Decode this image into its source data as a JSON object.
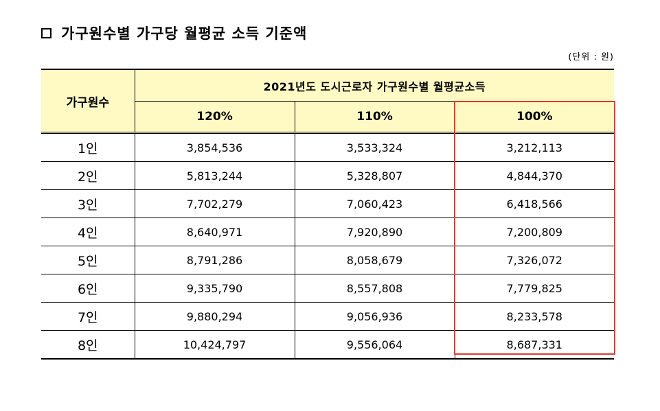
{
  "title": "가구원수별 가구당 월평균 소득 기준액",
  "unit": "(단위 : 원)",
  "table": {
    "members_header": "가구원수",
    "group_header": "2021년도 도시근로자 가구원수별 월평균소득",
    "columns": [
      "120%",
      "110%",
      "100%"
    ],
    "rows": [
      {
        "label": "1인",
        "values": [
          "3,854,536",
          "3,533,324",
          "3,212,113"
        ]
      },
      {
        "label": "2인",
        "values": [
          "5,813,244",
          "5,328,807",
          "4,844,370"
        ]
      },
      {
        "label": "3인",
        "values": [
          "7,702,279",
          "7,060,423",
          "6,418,566"
        ]
      },
      {
        "label": "4인",
        "values": [
          "8,640,971",
          "7,920,890",
          "7,200,809"
        ]
      },
      {
        "label": "5인",
        "values": [
          "8,791,286",
          "8,058,679",
          "7,326,072"
        ]
      },
      {
        "label": "6인",
        "values": [
          "9,335,790",
          "8,557,808",
          "7,779,825"
        ]
      },
      {
        "label": "7인",
        "values": [
          "9,880,294",
          "9,056,936",
          "8,233,578"
        ]
      },
      {
        "label": "8인",
        "values": [
          "10,424,797",
          "9,556,064",
          "8,687,331"
        ]
      }
    ]
  },
  "colors": {
    "header_background": "#fff9c4",
    "highlight_border": "#e53935"
  }
}
